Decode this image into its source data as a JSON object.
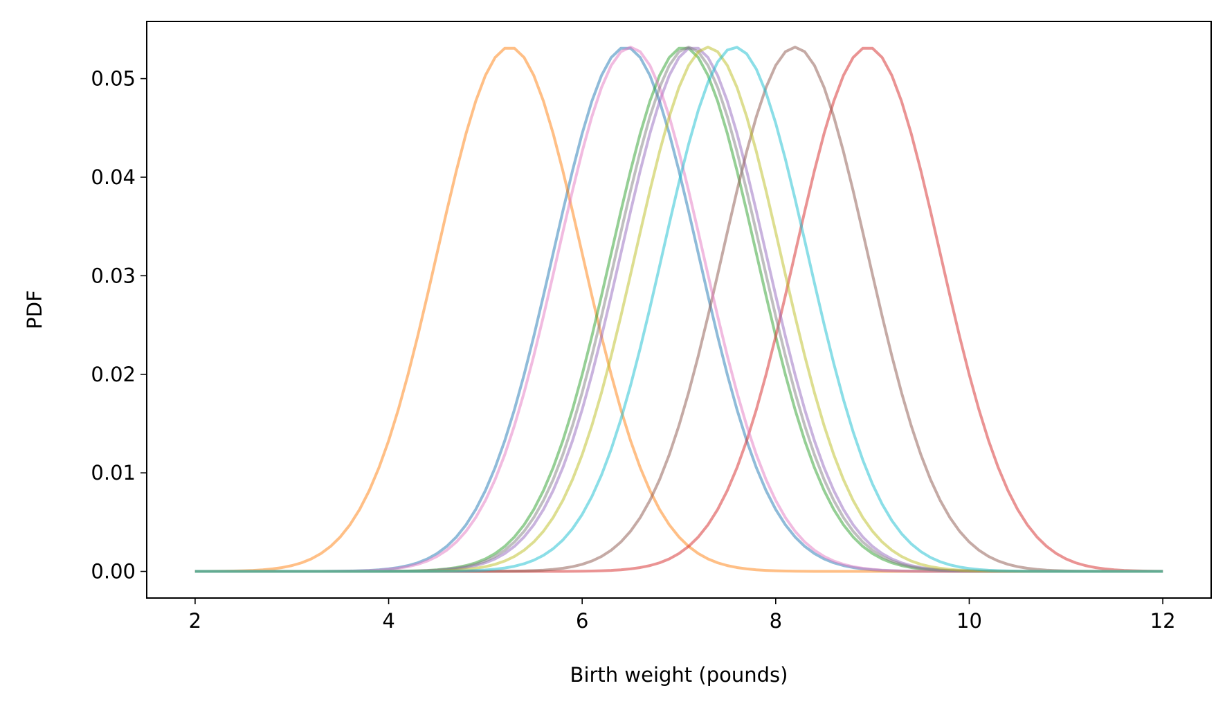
{
  "chart_data": {
    "type": "line",
    "title": "",
    "xlabel": "Birth weight (pounds)",
    "ylabel": "PDF",
    "xlim": [
      1.5,
      12.5
    ],
    "ylim": [
      -0.0027,
      0.0558
    ],
    "x_ticks": [
      2,
      4,
      6,
      8,
      10,
      12
    ],
    "x_tick_labels": [
      "2",
      "4",
      "6",
      "8",
      "10",
      "12"
    ],
    "y_ticks": [
      0.0,
      0.01,
      0.02,
      0.03,
      0.04,
      0.05
    ],
    "y_tick_labels": [
      "0.00",
      "0.01",
      "0.02",
      "0.03",
      "0.04",
      "0.05"
    ],
    "grid": false,
    "legend": "none",
    "x_range": [
      2,
      12
    ],
    "num_points": 101,
    "sigma": 0.75,
    "peak": 0.0532,
    "series": [
      {
        "mean": 6.45,
        "color": "#1f77b4"
      },
      {
        "mean": 5.25,
        "color": "#ff7f0e"
      },
      {
        "mean": 7.05,
        "color": "#2ca02c"
      },
      {
        "mean": 8.95,
        "color": "#d62728"
      },
      {
        "mean": 7.15,
        "color": "#9467bd"
      },
      {
        "mean": 8.2,
        "color": "#8c564b"
      },
      {
        "mean": 6.5,
        "color": "#e377c2"
      },
      {
        "mean": 7.1,
        "color": "#7f7f7f"
      },
      {
        "mean": 7.3,
        "color": "#bcbd22"
      },
      {
        "mean": 7.58,
        "color": "#17becf"
      }
    ]
  }
}
